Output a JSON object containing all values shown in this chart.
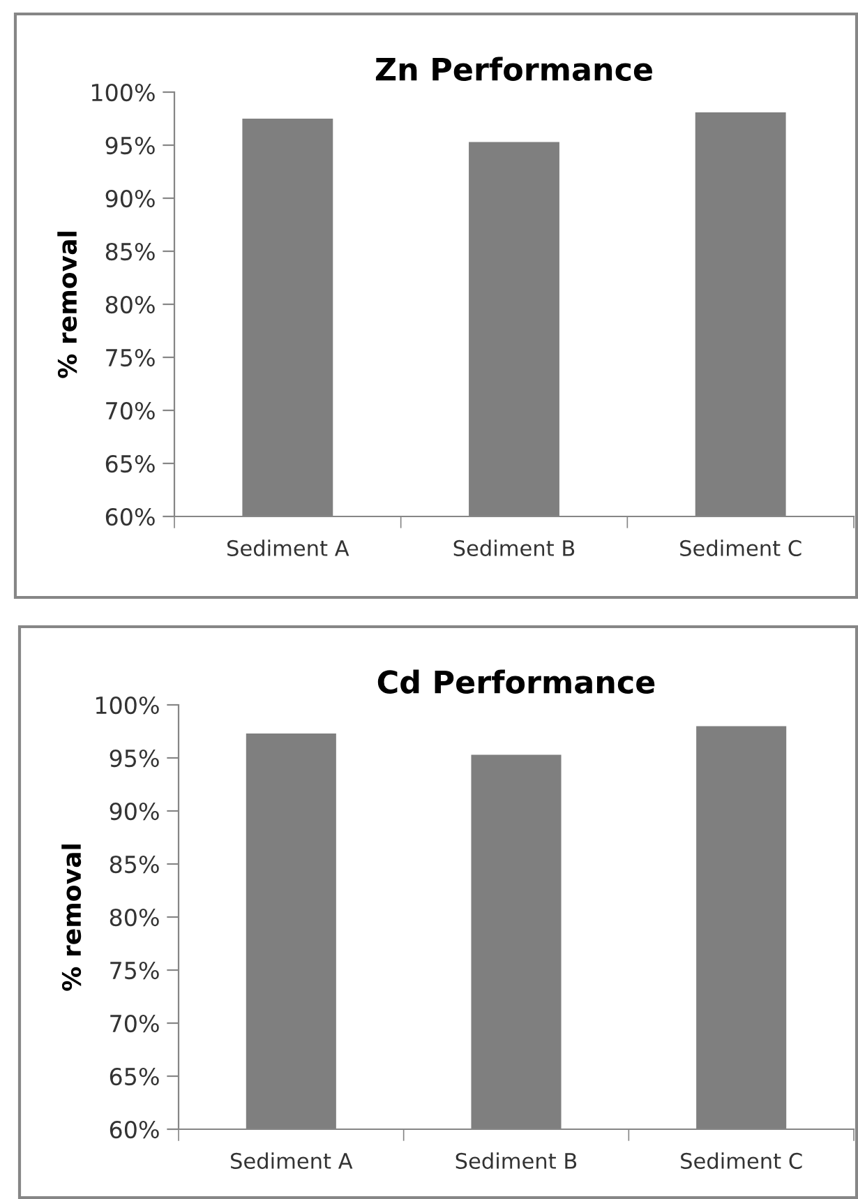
{
  "chart_data": [
    {
      "type": "bar",
      "title": "Zn Performance",
      "ylabel": "% removal",
      "categories": [
        "Sediment A",
        "Sediment B",
        "Sediment C"
      ],
      "values": [
        97.5,
        95.3,
        98.1
      ],
      "color": "#7f7f7f",
      "ylim": [
        60,
        100
      ],
      "yticks": [
        {
          "value": 60,
          "label": "60%"
        },
        {
          "value": 65,
          "label": "65%"
        },
        {
          "value": 70,
          "label": "70%"
        },
        {
          "value": 75,
          "label": "75%"
        },
        {
          "value": 80,
          "label": "80%"
        },
        {
          "value": 85,
          "label": "85%"
        },
        {
          "value": 90,
          "label": "90%"
        },
        {
          "value": 95,
          "label": "95%"
        },
        {
          "value": 100,
          "label": "100%"
        }
      ],
      "grid": false,
      "legend": false
    },
    {
      "type": "bar",
      "title": "Cd Performance",
      "ylabel": "% removal",
      "categories": [
        "Sediment A",
        "Sediment B",
        "Sediment C"
      ],
      "values": [
        97.3,
        95.3,
        98.0
      ],
      "color": "#7f7f7f",
      "ylim": [
        60,
        100
      ],
      "yticks": [
        {
          "value": 60,
          "label": "60%"
        },
        {
          "value": 65,
          "label": "65%"
        },
        {
          "value": 70,
          "label": "70%"
        },
        {
          "value": 75,
          "label": "75%"
        },
        {
          "value": 80,
          "label": "80%"
        },
        {
          "value": 85,
          "label": "85%"
        },
        {
          "value": 90,
          "label": "90%"
        },
        {
          "value": 95,
          "label": "95%"
        },
        {
          "value": 100,
          "label": "100%"
        }
      ],
      "grid": false,
      "legend": false
    }
  ]
}
